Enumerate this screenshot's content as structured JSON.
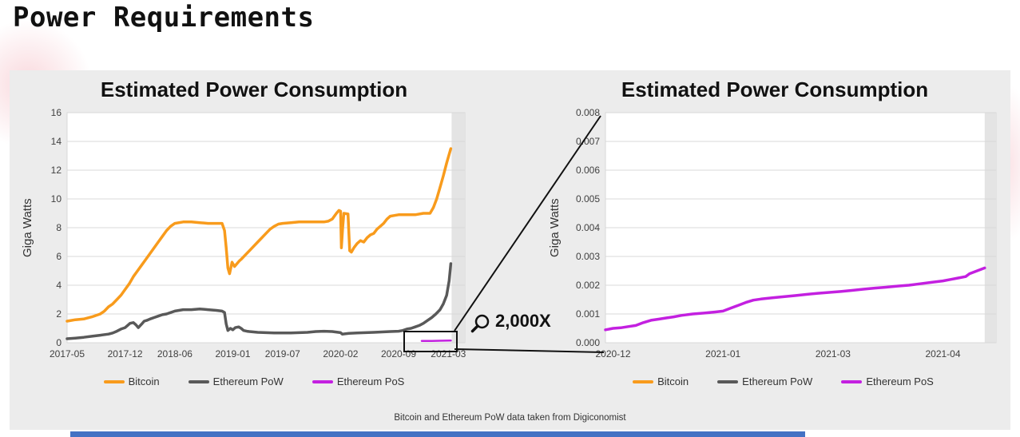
{
  "page": {
    "title": "Power Requirements",
    "footnote": "Bitcoin and Ethereum PoW data taken from Digiconomist"
  },
  "zoom": {
    "icon": "magnifier-icon",
    "label": "2,000X"
  },
  "colors": {
    "bitcoin": "#F89B1C",
    "ethereum_pow": "#595959",
    "ethereum_pos": "#C320E0",
    "accent_bar": "#4472C4",
    "panel": "#ececec",
    "gridline": "#d9d9d9"
  },
  "chart_data": [
    {
      "type": "line",
      "title": "Estimated Power Consumption",
      "xlabel": "",
      "ylabel": "Giga Watts",
      "ylim": [
        0,
        16
      ],
      "xlim": [
        0,
        48
      ],
      "shade_from": 46.4,
      "grid": "horizontal",
      "legend_position": "bottom",
      "yticks": [
        {
          "pos": 0,
          "label": "0"
        },
        {
          "pos": 2,
          "label": "2"
        },
        {
          "pos": 4,
          "label": "4"
        },
        {
          "pos": 6,
          "label": "6"
        },
        {
          "pos": 8,
          "label": "8"
        },
        {
          "pos": 10,
          "label": "10"
        },
        {
          "pos": 12,
          "label": "12"
        },
        {
          "pos": 14,
          "label": "14"
        },
        {
          "pos": 16,
          "label": "16"
        }
      ],
      "xticks": [
        {
          "pos": 0,
          "label": "2017-05"
        },
        {
          "pos": 7,
          "label": "2017-12"
        },
        {
          "pos": 13,
          "label": "2018-06"
        },
        {
          "pos": 20,
          "label": "2019-01"
        },
        {
          "pos": 26,
          "label": "2019-07"
        },
        {
          "pos": 33,
          "label": "2020-02"
        },
        {
          "pos": 40,
          "label": "2020-09"
        },
        {
          "pos": 46,
          "label": "2021-03"
        }
      ],
      "legend": [
        {
          "label": "Bitcoin",
          "color": "#F89B1C"
        },
        {
          "label": "Ethereum PoW",
          "color": "#595959"
        },
        {
          "label": "Ethereum PoS",
          "color": "#C320E0"
        }
      ],
      "series": [
        {
          "name": "Bitcoin",
          "color": "#F89B1C",
          "width": 3.5,
          "points": [
            [
              0,
              1.5
            ],
            [
              1,
              1.6
            ],
            [
              2,
              1.65
            ],
            [
              3,
              1.8
            ],
            [
              4,
              2.0
            ],
            [
              4.5,
              2.2
            ],
            [
              5,
              2.5
            ],
            [
              5.5,
              2.7
            ],
            [
              6,
              3.0
            ],
            [
              6.5,
              3.3
            ],
            [
              7,
              3.7
            ],
            [
              7.5,
              4.1
            ],
            [
              8,
              4.6
            ],
            [
              8.5,
              5.0
            ],
            [
              9,
              5.4
            ],
            [
              9.5,
              5.8
            ],
            [
              10,
              6.2
            ],
            [
              10.5,
              6.6
            ],
            [
              11,
              7.0
            ],
            [
              11.5,
              7.4
            ],
            [
              12,
              7.8
            ],
            [
              12.5,
              8.1
            ],
            [
              13,
              8.3
            ],
            [
              14,
              8.4
            ],
            [
              15,
              8.4
            ],
            [
              16,
              8.35
            ],
            [
              17,
              8.3
            ],
            [
              18,
              8.3
            ],
            [
              18.7,
              8.3
            ],
            [
              19,
              7.8
            ],
            [
              19.2,
              6.6
            ],
            [
              19.4,
              5.2
            ],
            [
              19.6,
              4.8
            ],
            [
              19.9,
              5.6
            ],
            [
              20.2,
              5.3
            ],
            [
              20.5,
              5.5
            ],
            [
              20.8,
              5.7
            ],
            [
              21,
              5.8
            ],
            [
              21.5,
              6.1
            ],
            [
              22,
              6.4
            ],
            [
              22.5,
              6.7
            ],
            [
              23,
              7.0
            ],
            [
              23.5,
              7.3
            ],
            [
              24,
              7.6
            ],
            [
              24.5,
              7.9
            ],
            [
              25,
              8.1
            ],
            [
              25.5,
              8.25
            ],
            [
              26,
              8.3
            ],
            [
              27,
              8.35
            ],
            [
              28,
              8.4
            ],
            [
              29,
              8.4
            ],
            [
              30,
              8.4
            ],
            [
              31,
              8.4
            ],
            [
              31.5,
              8.45
            ],
            [
              32,
              8.6
            ],
            [
              32.5,
              9.0
            ],
            [
              32.8,
              9.2
            ],
            [
              33,
              9.15
            ],
            [
              33.1,
              6.6
            ],
            [
              33.25,
              8.0
            ],
            [
              33.4,
              9.0
            ],
            [
              33.9,
              8.95
            ],
            [
              34.1,
              6.4
            ],
            [
              34.3,
              6.3
            ],
            [
              34.6,
              6.6
            ],
            [
              35,
              6.9
            ],
            [
              35.4,
              7.1
            ],
            [
              35.8,
              7.0
            ],
            [
              36.2,
              7.3
            ],
            [
              36.6,
              7.5
            ],
            [
              37,
              7.6
            ],
            [
              37.4,
              7.9
            ],
            [
              37.8,
              8.1
            ],
            [
              38.2,
              8.3
            ],
            [
              38.6,
              8.6
            ],
            [
              39,
              8.8
            ],
            [
              39.5,
              8.85
            ],
            [
              40,
              8.9
            ],
            [
              41,
              8.9
            ],
            [
              42,
              8.9
            ],
            [
              43,
              9.0
            ],
            [
              43.8,
              9.0
            ],
            [
              44.2,
              9.4
            ],
            [
              44.6,
              10.0
            ],
            [
              45,
              10.8
            ],
            [
              45.4,
              11.6
            ],
            [
              45.8,
              12.5
            ],
            [
              46.1,
              13.1
            ],
            [
              46.3,
              13.5
            ]
          ]
        },
        {
          "name": "Ethereum PoW",
          "color": "#595959",
          "width": 3.5,
          "points": [
            [
              0,
              0.28
            ],
            [
              1,
              0.32
            ],
            [
              2,
              0.38
            ],
            [
              3,
              0.45
            ],
            [
              4,
              0.52
            ],
            [
              5,
              0.6
            ],
            [
              5.5,
              0.68
            ],
            [
              6,
              0.8
            ],
            [
              6.5,
              0.95
            ],
            [
              7,
              1.05
            ],
            [
              7.3,
              1.2
            ],
            [
              7.6,
              1.35
            ],
            [
              8,
              1.4
            ],
            [
              8.3,
              1.25
            ],
            [
              8.6,
              1.05
            ],
            [
              9,
              1.3
            ],
            [
              9.3,
              1.5
            ],
            [
              9.6,
              1.55
            ],
            [
              10,
              1.65
            ],
            [
              10.5,
              1.75
            ],
            [
              11,
              1.85
            ],
            [
              11.5,
              1.95
            ],
            [
              12,
              2.0
            ],
            [
              12.5,
              2.1
            ],
            [
              13,
              2.2
            ],
            [
              13.5,
              2.25
            ],
            [
              14,
              2.3
            ],
            [
              15,
              2.3
            ],
            [
              16,
              2.35
            ],
            [
              17,
              2.3
            ],
            [
              18,
              2.25
            ],
            [
              18.7,
              2.2
            ],
            [
              19,
              2.1
            ],
            [
              19.2,
              1.3
            ],
            [
              19.4,
              0.85
            ],
            [
              19.7,
              1.0
            ],
            [
              20,
              0.9
            ],
            [
              20.3,
              1.05
            ],
            [
              20.7,
              1.1
            ],
            [
              21,
              1.0
            ],
            [
              21.3,
              0.85
            ],
            [
              21.7,
              0.8
            ],
            [
              22,
              0.78
            ],
            [
              23,
              0.72
            ],
            [
              24,
              0.7
            ],
            [
              25,
              0.68
            ],
            [
              26,
              0.68
            ],
            [
              27,
              0.68
            ],
            [
              28,
              0.7
            ],
            [
              29,
              0.72
            ],
            [
              30,
              0.78
            ],
            [
              31,
              0.8
            ],
            [
              32,
              0.78
            ],
            [
              33,
              0.7
            ],
            [
              33.2,
              0.6
            ],
            [
              33.6,
              0.62
            ],
            [
              34,
              0.65
            ],
            [
              35,
              0.68
            ],
            [
              36,
              0.7
            ],
            [
              37,
              0.72
            ],
            [
              38,
              0.75
            ],
            [
              39,
              0.78
            ],
            [
              40,
              0.8
            ],
            [
              40.5,
              0.85
            ],
            [
              41,
              0.95
            ],
            [
              41.5,
              1.0
            ],
            [
              42,
              1.1
            ],
            [
              42.5,
              1.2
            ],
            [
              43,
              1.35
            ],
            [
              43.5,
              1.55
            ],
            [
              44,
              1.75
            ],
            [
              44.5,
              2.0
            ],
            [
              45,
              2.3
            ],
            [
              45.4,
              2.7
            ],
            [
              45.8,
              3.3
            ],
            [
              46.1,
              4.3
            ],
            [
              46.3,
              5.5
            ]
          ]
        },
        {
          "name": "Ethereum PoS",
          "color": "#C320E0",
          "width": 2.5,
          "points": [
            [
              42.8,
              0.12
            ],
            [
              44,
              0.13
            ],
            [
              45,
              0.14
            ],
            [
              46.3,
              0.15
            ]
          ]
        }
      ]
    },
    {
      "type": "line",
      "title": "Estimated Power Consumption",
      "xlabel": "",
      "ylabel": "Giga Watts",
      "ylim": [
        0,
        0.008
      ],
      "xlim": [
        0,
        103
      ],
      "shade_from": 100,
      "grid": "horizontal",
      "legend_position": "bottom",
      "yticks": [
        {
          "pos": 0,
          "label": "0.000"
        },
        {
          "pos": 0.001,
          "label": "0.001"
        },
        {
          "pos": 0.002,
          "label": "0.002"
        },
        {
          "pos": 0.003,
          "label": "0.003"
        },
        {
          "pos": 0.004,
          "label": "0.004"
        },
        {
          "pos": 0.005,
          "label": "0.005"
        },
        {
          "pos": 0.006,
          "label": "0.006"
        },
        {
          "pos": 0.007,
          "label": "0.007"
        },
        {
          "pos": 0.008,
          "label": "0.008"
        }
      ],
      "xticks": [
        {
          "pos": 2,
          "label": "2020-12"
        },
        {
          "pos": 31,
          "label": "2021-01"
        },
        {
          "pos": 60,
          "label": "2021-03"
        },
        {
          "pos": 89,
          "label": "2021-04"
        }
      ],
      "legend": [
        {
          "label": "Bitcoin",
          "color": "#F89B1C"
        },
        {
          "label": "Ethereum PoW",
          "color": "#595959"
        },
        {
          "label": "Ethereum PoS",
          "color": "#C320E0"
        }
      ],
      "series": [
        {
          "name": "Ethereum PoS",
          "color": "#C320E0",
          "width": 3.5,
          "points": [
            [
              0,
              0.00045
            ],
            [
              2,
              0.0005
            ],
            [
              4,
              0.00052
            ],
            [
              6,
              0.00056
            ],
            [
              8,
              0.0006
            ],
            [
              10,
              0.0007
            ],
            [
              12,
              0.00078
            ],
            [
              14,
              0.00082
            ],
            [
              16,
              0.00086
            ],
            [
              18,
              0.0009
            ],
            [
              20,
              0.00095
            ],
            [
              23,
              0.001
            ],
            [
              26,
              0.00103
            ],
            [
              29,
              0.00107
            ],
            [
              31,
              0.0011
            ],
            [
              33,
              0.0012
            ],
            [
              35,
              0.0013
            ],
            [
              37,
              0.0014
            ],
            [
              39,
              0.00148
            ],
            [
              41,
              0.00152
            ],
            [
              44,
              0.00156
            ],
            [
              47,
              0.0016
            ],
            [
              50,
              0.00164
            ],
            [
              53,
              0.00168
            ],
            [
              56,
              0.00172
            ],
            [
              59,
              0.00175
            ],
            [
              62,
              0.00178
            ],
            [
              65,
              0.00182
            ],
            [
              68,
              0.00186
            ],
            [
              71,
              0.0019
            ],
            [
              74,
              0.00193
            ],
            [
              77,
              0.00197
            ],
            [
              80,
              0.002
            ],
            [
              83,
              0.00205
            ],
            [
              86,
              0.0021
            ],
            [
              89,
              0.00215
            ],
            [
              91,
              0.0022
            ],
            [
              93,
              0.00225
            ],
            [
              95,
              0.0023
            ],
            [
              96,
              0.0024
            ],
            [
              98,
              0.0025
            ],
            [
              100,
              0.0026
            ]
          ]
        }
      ]
    }
  ]
}
